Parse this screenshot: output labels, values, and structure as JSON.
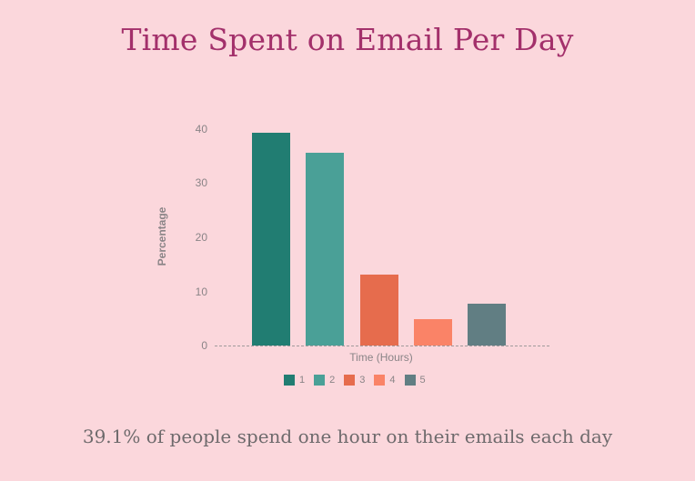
{
  "title": "Time Spent on Email Per Day",
  "caption": "39.1% of people spend one hour on their emails each day",
  "chart_data": {
    "type": "bar",
    "title": "Time Spent on Email Per Day",
    "xlabel": "Time (Hours)",
    "ylabel": "Percentage",
    "categories": [
      "1",
      "2",
      "3",
      "4",
      "5"
    ],
    "values": [
      39.1,
      35.5,
      13.0,
      4.9,
      7.7
    ],
    "colors": [
      "#217d72",
      "#4aa097",
      "#e66c4d",
      "#fa8367",
      "#617e83"
    ],
    "ylim": [
      0,
      40
    ],
    "yticks": [
      0,
      10,
      20,
      30,
      40
    ],
    "grid": false,
    "legend": {
      "position": "bottom",
      "entries": [
        "1",
        "2",
        "3",
        "4",
        "5"
      ]
    }
  },
  "axis": {
    "yticks": [
      "0",
      "10",
      "20",
      "30",
      "40"
    ],
    "ylabel": "Percentage",
    "xlabel": "Time (Hours)"
  },
  "legend": [
    {
      "label": "1",
      "color": "#217d72"
    },
    {
      "label": "2",
      "color": "#4aa097"
    },
    {
      "label": "3",
      "color": "#e66c4d"
    },
    {
      "label": "4",
      "color": "#fa8367"
    },
    {
      "label": "5",
      "color": "#617e83"
    }
  ]
}
